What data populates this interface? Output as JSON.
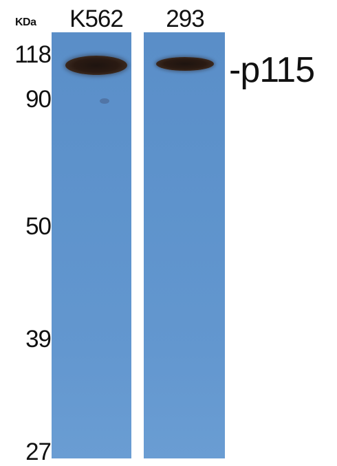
{
  "units": "KDa",
  "lanes": [
    "K562",
    "293"
  ],
  "markers": [
    "118",
    "90",
    "50",
    "39",
    "27"
  ],
  "protein_label": "-p115"
}
